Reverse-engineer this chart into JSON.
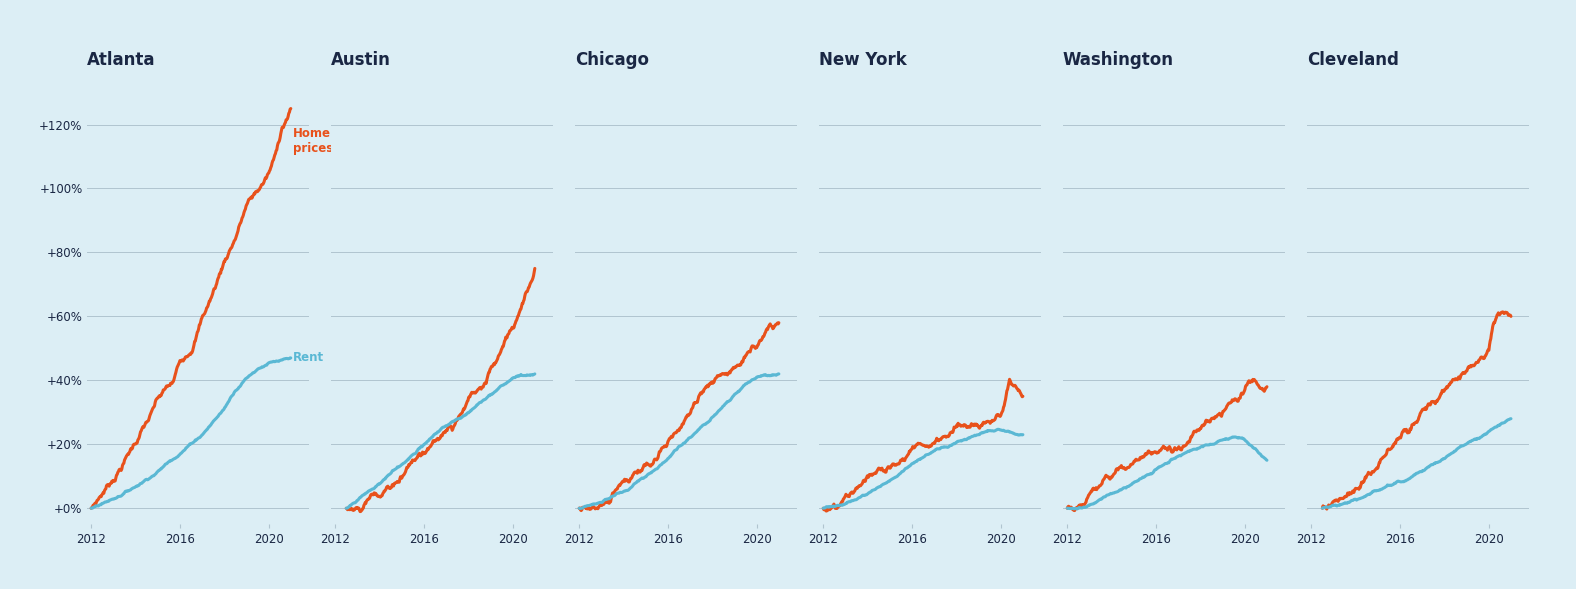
{
  "titles": [
    "Atlanta",
    "Austin",
    "Chicago",
    "New York",
    "Washington",
    "Cleveland"
  ],
  "background_color": "#dceef5",
  "home_prices_color": "#e8511b",
  "rent_color": "#5ab8d4",
  "title_color": "#1a2744",
  "grid_color": "#b0c4cf",
  "yticks": [
    0,
    20,
    40,
    60,
    80,
    100,
    120
  ],
  "ytick_labels": [
    "+0%",
    "+20%",
    "+40%",
    "+60%",
    "+80%",
    "+100%",
    "+120%"
  ],
  "ylim": [
    -5,
    135
  ],
  "xticks": [
    2012,
    2016,
    2020
  ],
  "cities": {
    "Atlanta": {
      "hp_x": [
        2012,
        2013,
        2014,
        2014.3,
        2014.7,
        2015,
        2015.3,
        2015.7,
        2016,
        2016.5,
        2017,
        2017.5,
        2018,
        2018.5,
        2019,
        2019.5,
        2020,
        2020.3,
        2020.6,
        2021
      ],
      "hp_y": [
        0,
        10,
        22,
        26,
        30,
        34,
        36,
        38,
        44,
        50,
        60,
        68,
        78,
        86,
        96,
        100,
        105,
        110,
        120,
        125
      ],
      "rent_x": [
        2012,
        2013,
        2014,
        2015,
        2016,
        2017,
        2018,
        2018.5,
        2019,
        2019.5,
        2020,
        2021
      ],
      "rent_y": [
        0,
        3,
        7,
        12,
        18,
        24,
        32,
        38,
        42,
        45,
        47,
        47
      ]
    },
    "Austin": {
      "hp_x": [
        2012.5,
        2013,
        2014,
        2015,
        2016,
        2016.5,
        2017,
        2017.5,
        2018,
        2018.5,
        2019,
        2019.5,
        2020,
        2020.5,
        2021
      ],
      "hp_y": [
        0,
        2,
        6,
        13,
        20,
        23,
        28,
        31,
        36,
        40,
        46,
        52,
        60,
        68,
        75
      ],
      "rent_x": [
        2012.5,
        2013,
        2014,
        2015,
        2016,
        2017,
        2018,
        2019,
        2019.5,
        2020,
        2020.5,
        2021
      ],
      "rent_y": [
        0,
        2,
        7,
        13,
        19,
        25,
        30,
        35,
        38,
        40,
        41,
        42
      ]
    },
    "Chicago": {
      "hp_x": [
        2012,
        2012.5,
        2013,
        2013.5,
        2014,
        2014.5,
        2015,
        2015.5,
        2016,
        2016.5,
        2017,
        2017.5,
        2018,
        2018.5,
        2019,
        2019.5,
        2020,
        2020.3,
        2020.6,
        2021
      ],
      "hp_y": [
        0,
        1,
        3,
        5,
        8,
        10,
        13,
        16,
        20,
        24,
        28,
        32,
        36,
        39,
        42,
        44,
        48,
        52,
        56,
        58
      ],
      "rent_x": [
        2012,
        2013,
        2014,
        2015,
        2016,
        2017,
        2018,
        2019,
        2019.5,
        2020,
        2021
      ],
      "rent_y": [
        0,
        2,
        6,
        11,
        17,
        23,
        29,
        35,
        38,
        40,
        42
      ]
    },
    "New York": {
      "hp_x": [
        2012,
        2012.3,
        2012.7,
        2013,
        2013.3,
        2013.7,
        2014,
        2014.3,
        2014.7,
        2015,
        2015.3,
        2015.7,
        2016,
        2016.3,
        2016.7,
        2017,
        2017.3,
        2017.7,
        2018,
        2018.3,
        2018.7,
        2019,
        2019.3,
        2019.7,
        2020,
        2020.1,
        2020.2,
        2020.4,
        2021
      ],
      "hp_y": [
        0,
        1,
        2,
        3,
        5,
        6,
        8,
        9,
        11,
        12,
        14,
        15,
        17,
        18,
        19,
        21,
        22,
        23,
        24,
        25,
        26,
        27,
        28,
        29,
        30,
        32,
        35,
        40,
        35
      ],
      "rent_x": [
        2012,
        2013,
        2014,
        2015,
        2016,
        2017,
        2018,
        2019,
        2019.5,
        2020,
        2021
      ],
      "rent_y": [
        0,
        2,
        5,
        9,
        14,
        18,
        21,
        23,
        24,
        24,
        23
      ]
    },
    "Washington": {
      "hp_x": [
        2012,
        2012.3,
        2012.7,
        2013,
        2013.3,
        2013.7,
        2014,
        2014.3,
        2014.7,
        2015,
        2015.3,
        2015.7,
        2016,
        2016.3,
        2016.7,
        2017,
        2017.3,
        2017.7,
        2018,
        2018.3,
        2018.7,
        2019,
        2019.3,
        2019.7,
        2020,
        2020.1,
        2020.2,
        2021
      ],
      "hp_y": [
        0,
        1,
        2,
        4,
        5,
        7,
        8,
        10,
        11,
        13,
        14,
        16,
        17,
        19,
        20,
        22,
        23,
        25,
        26,
        28,
        29,
        32,
        34,
        36,
        38,
        40,
        42,
        38
      ],
      "rent_x": [
        2012,
        2013,
        2014,
        2015,
        2016,
        2017,
        2018,
        2019,
        2019.5,
        2020,
        2020.3,
        2020.7,
        2021
      ],
      "rent_y": [
        0,
        2,
        5,
        9,
        13,
        17,
        20,
        22,
        23,
        22,
        20,
        17,
        15
      ]
    },
    "Cleveland": {
      "hp_x": [
        2012.5,
        2013,
        2013.3,
        2013.7,
        2014,
        2014.3,
        2014.7,
        2015,
        2015.3,
        2015.7,
        2016,
        2016.3,
        2016.7,
        2017,
        2017.3,
        2017.7,
        2018,
        2018.3,
        2018.7,
        2019,
        2019.3,
        2019.7,
        2020,
        2020.1,
        2020.2,
        2020.4,
        2021
      ],
      "hp_y": [
        0,
        2,
        3,
        5,
        7,
        9,
        11,
        13,
        15,
        17,
        20,
        22,
        24,
        27,
        29,
        31,
        34,
        36,
        38,
        41,
        43,
        46,
        50,
        54,
        58,
        62,
        60
      ],
      "rent_x": [
        2012.5,
        2013,
        2014,
        2015,
        2016,
        2017,
        2018,
        2019,
        2019.5,
        2020,
        2020.5,
        2021
      ],
      "rent_y": [
        0,
        1,
        3,
        6,
        9,
        13,
        16,
        20,
        22,
        24,
        26,
        28
      ]
    }
  }
}
